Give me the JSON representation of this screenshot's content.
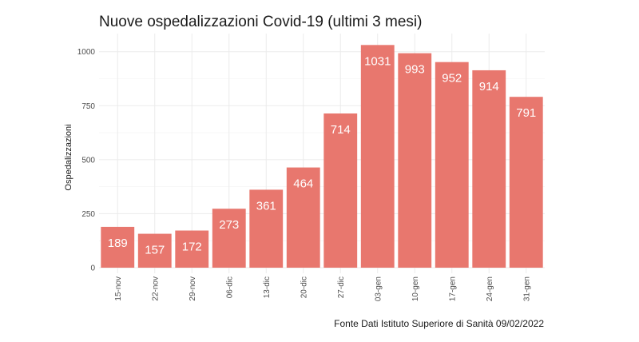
{
  "chart_data": {
    "type": "bar",
    "title": "Nuove ospedalizzazioni Covid-19 (ultimi 3 mesi)",
    "xlabel": "",
    "ylabel": "Ospedalizzazioni",
    "caption": "Fonte Dati Istituto Superiore di Sanità 09/02/2022",
    "categories": [
      "15-nov",
      "22-nov",
      "29-nov",
      "06-dic",
      "13-dic",
      "20-dic",
      "27-dic",
      "03-gen",
      "10-gen",
      "17-gen",
      "24-gen",
      "31-gen"
    ],
    "values": [
      189,
      157,
      172,
      273,
      361,
      464,
      714,
      1031,
      993,
      952,
      914,
      791
    ],
    "data_labels": [
      "189",
      "157",
      "172",
      "273",
      "361",
      "464",
      "714",
      "1031",
      "993",
      "952",
      "914",
      "791"
    ],
    "yticks": [
      0,
      250,
      500,
      750,
      1000
    ],
    "ytick_labels": [
      "0",
      "250",
      "500",
      "750",
      "1000"
    ],
    "ylim": [
      0,
      1060
    ],
    "grid": true,
    "legend": "none",
    "bar_color": "#e8776e",
    "grid_color": "#ebebeb"
  }
}
